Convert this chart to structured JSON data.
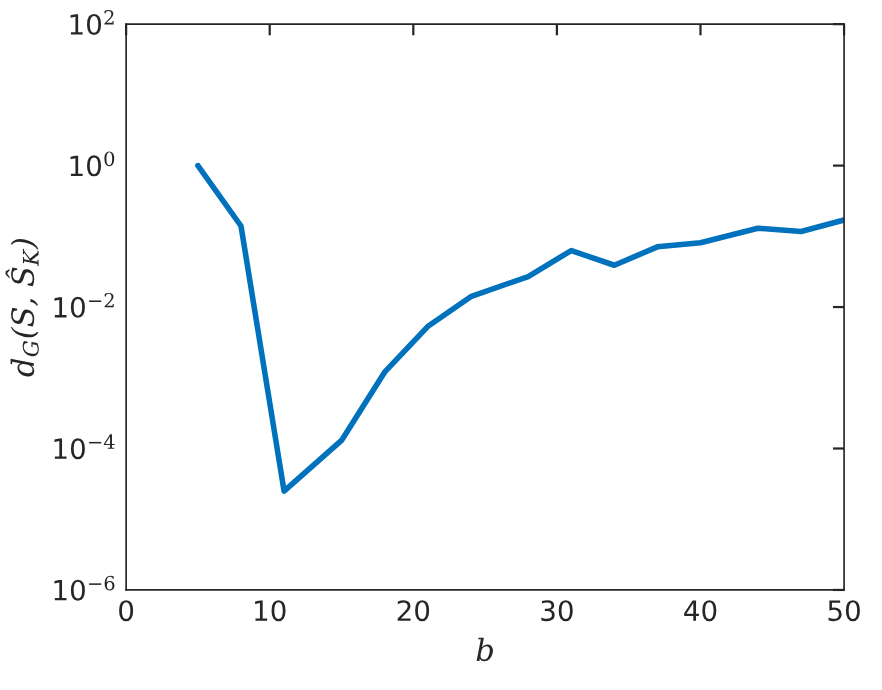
{
  "chart_data": {
    "type": "line",
    "xlabel": "b",
    "ylabel": "d$_{G}$(S, Ŝ$_{K}$)",
    "log": "y",
    "x": [
      5,
      8,
      11,
      15,
      18,
      21,
      24,
      28,
      31,
      34,
      37,
      40,
      44,
      47,
      50
    ],
    "series": [
      {
        "color": "#0072bd",
        "values": [
          1.0,
          0.14,
          2.5e-05,
          0.00013,
          0.0012,
          0.0053,
          0.014,
          0.027,
          0.063,
          0.039,
          0.071,
          0.081,
          0.13,
          0.117,
          0.17
        ]
      }
    ],
    "xlim": [
      0,
      50
    ],
    "xticks": [
      0,
      10,
      20,
      30,
      40,
      50
    ],
    "ylim": [
      1e-06,
      100
    ],
    "yticks": [
      {
        "value": 1e-06,
        "label": "10$^{−6}$"
      },
      {
        "value": 0.0001,
        "label": "10$^{−4}$"
      },
      {
        "value": 0.01,
        "label": "10$^{−2}$"
      },
      {
        "value": 1,
        "label": "10$^{0}$"
      },
      {
        "value": 100,
        "label": "10$^{2}$"
      }
    ],
    "grid": false,
    "marker": "none",
    "line_style": "solid"
  }
}
